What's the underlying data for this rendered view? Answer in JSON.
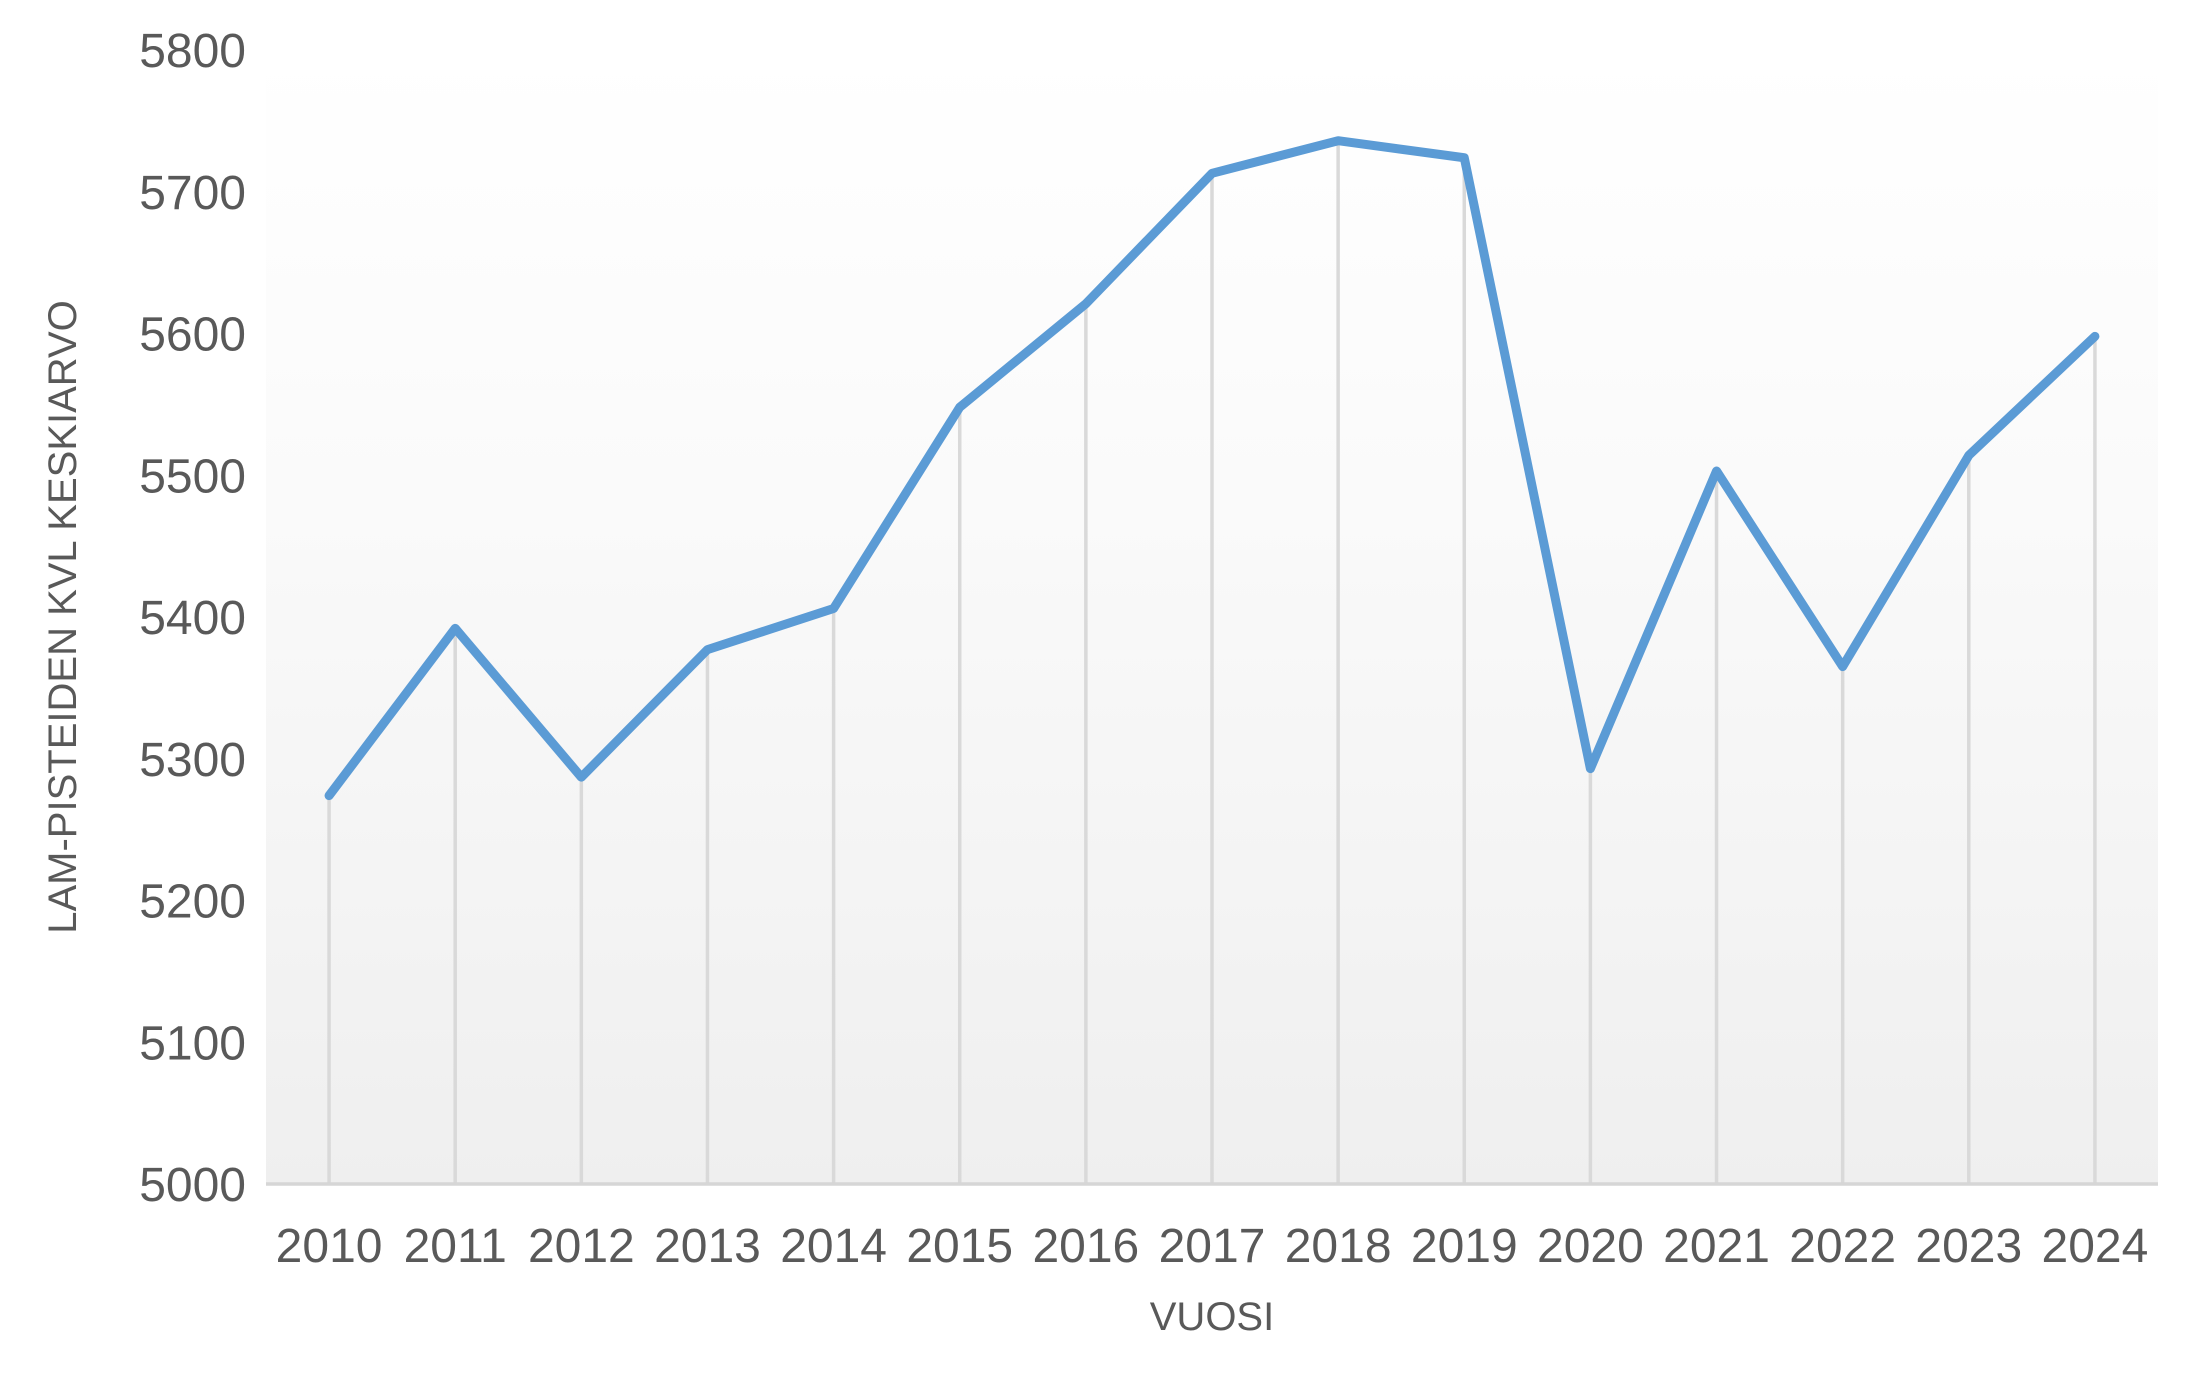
{
  "chart_data": {
    "type": "line",
    "title": "",
    "xlabel": "VUOSI",
    "ylabel": "LAM-PISTEIDEN KVL KESKIARVO",
    "categories": [
      "2010",
      "2011",
      "2012",
      "2013",
      "2014",
      "2015",
      "2016",
      "2017",
      "2018",
      "2019",
      "2020",
      "2021",
      "2022",
      "2023",
      "2024"
    ],
    "series": [
      {
        "name": "LAM-pisteiden KVL keskiarvo",
        "values": [
          5274,
          5392,
          5287,
          5377,
          5406,
          5548,
          5621,
          5713,
          5736,
          5724,
          5293,
          5503,
          5365,
          5514,
          5598
        ]
      }
    ],
    "ylim": [
      5000,
      5800
    ],
    "ytick_step": 100,
    "yticks": [
      5000,
      5100,
      5200,
      5300,
      5400,
      5500,
      5600,
      5700,
      5800
    ],
    "grid": "vertical-drop-lines-per-point",
    "legend_position": "none",
    "colors": {
      "line": "#5B9BD5",
      "drop_line": "#D9D9D9",
      "axis_line": "#D6D6D6",
      "text": "#595959",
      "plot_fill_top": "#FFFFFF",
      "plot_fill_mid": "#FAFAFA",
      "plot_fill_bottom": "#EFEFEF",
      "background": "#FFFFFF"
    }
  }
}
